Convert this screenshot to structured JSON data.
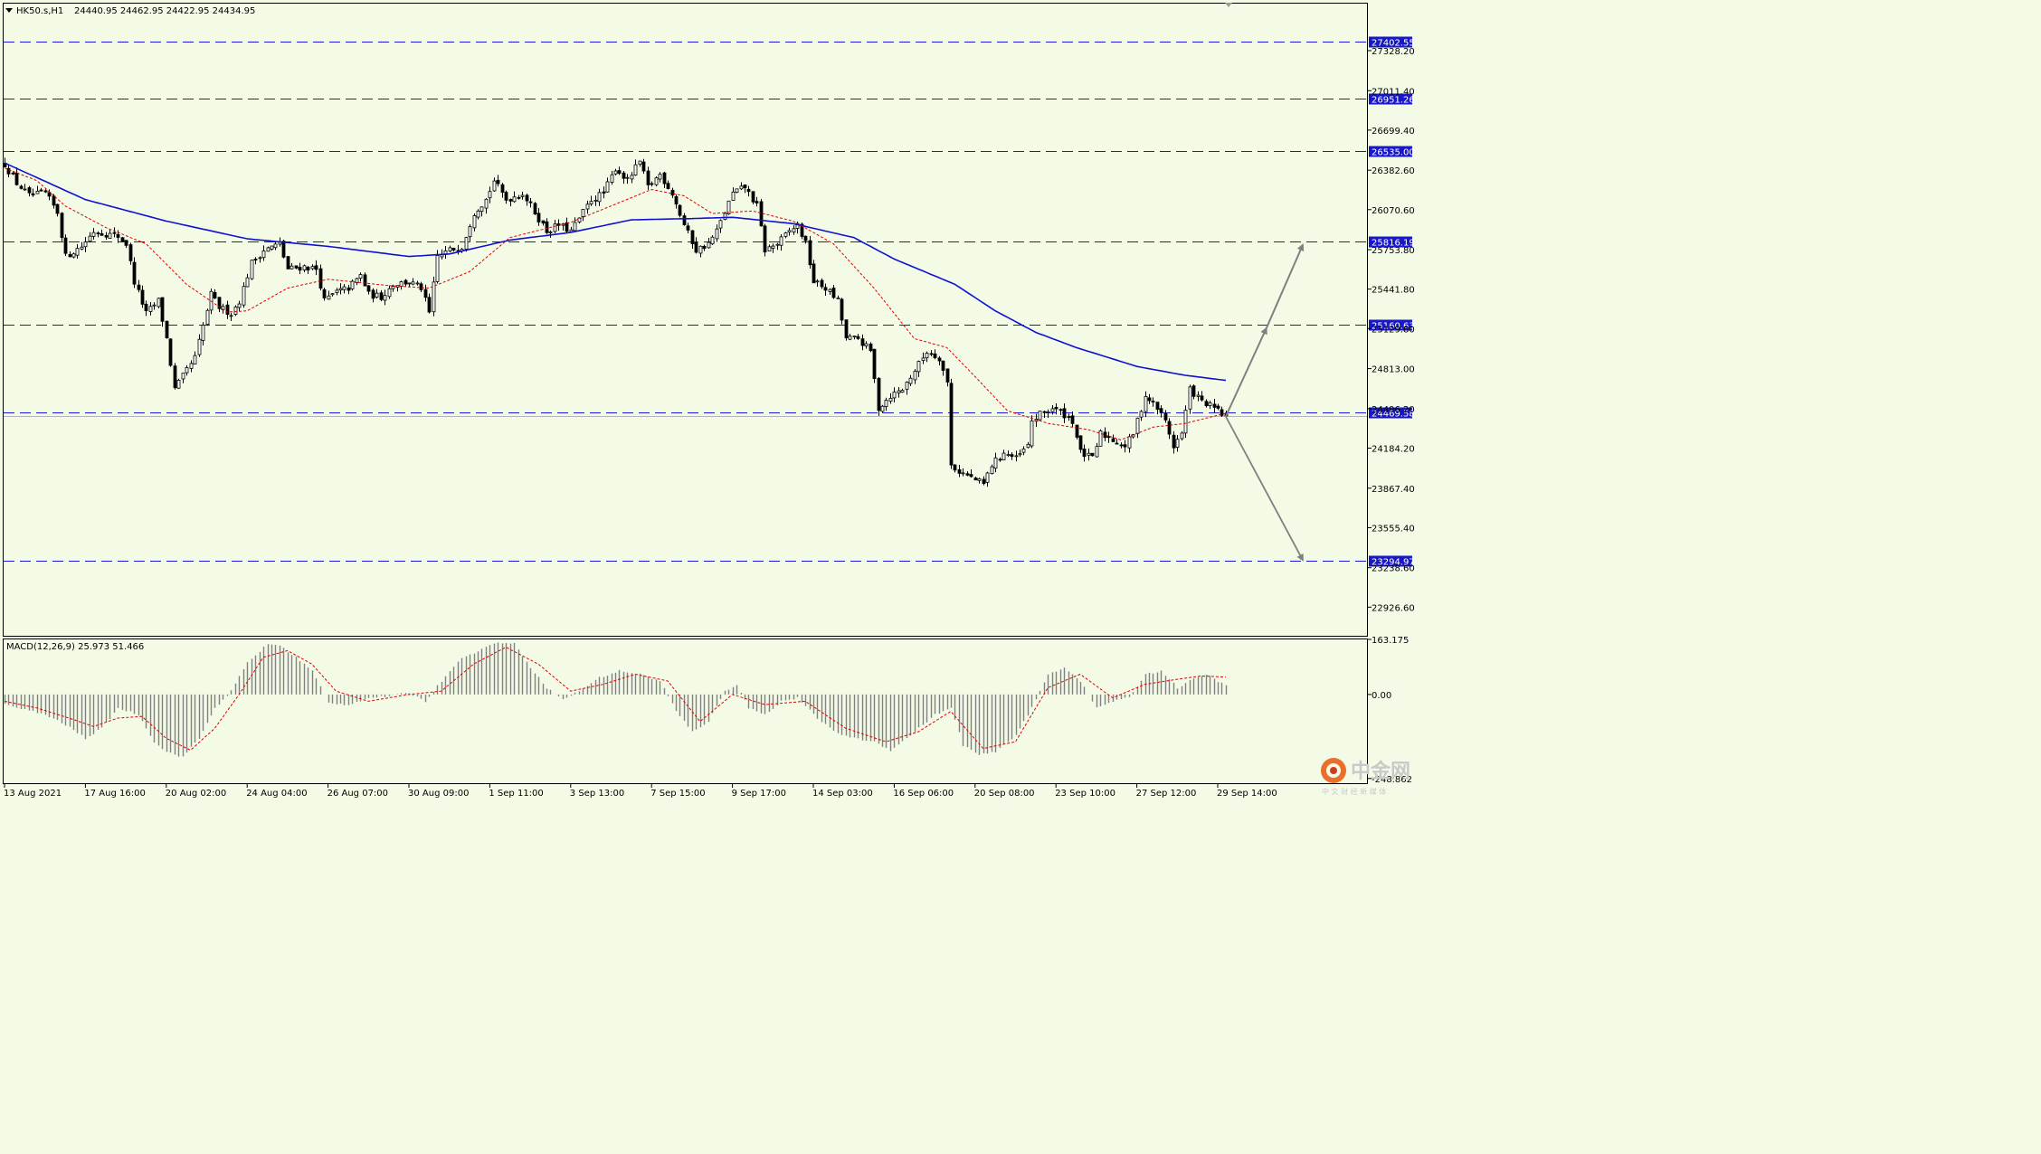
{
  "header": {
    "symbol_label": "HK50.s,H1",
    "ohlc_label": "24440.95 24462.95 24422.95 24434.95"
  },
  "colors": {
    "background": "#f3fbe6",
    "candle": "#000000",
    "sma_slow": "#1010d0",
    "sma_fast": "#e00000",
    "levels": "#1a1ad6",
    "level_tag_bg": "#1818c8",
    "macd_hist": "#808080",
    "macd_signal": "#e00000",
    "arrows": "#808080"
  },
  "chart_data": [
    {
      "type": "candlestick",
      "panel": "price",
      "symbol": "HK50.s",
      "timeframe": "H1",
      "ylim": [
        22700,
        27700
      ],
      "y_ticks": [
        27328.2,
        27011.4,
        26699.4,
        26382.6,
        26070.6,
        25753.8,
        25441.8,
        25129.8,
        24813.0,
        24496.2,
        24184.2,
        23867.4,
        23555.4,
        23238.6,
        22926.6
      ],
      "x_tick_labels": [
        "13 Aug 2021",
        "17 Aug 16:00",
        "20 Aug 02:00",
        "24 Aug 04:00",
        "26 Aug 07:00",
        "30 Aug 09:00",
        "1 Sep 11:00",
        "3 Sep 13:00",
        "7 Sep 15:00",
        "9 Sep 17:00",
        "14 Sep 03:00",
        "16 Sep 06:00",
        "20 Sep 08:00",
        "23 Sep 10:00",
        "27 Sep 12:00",
        "29 Sep 14:00"
      ],
      "x_tick_index": [
        0,
        20,
        40,
        60,
        80,
        100,
        120,
        140,
        160,
        180,
        200,
        220,
        240,
        260,
        280,
        300
      ],
      "current_price": 24434.95,
      "levels": [
        27402.55,
        26951.26,
        26535.0,
        25816.19,
        25160.63,
        24469.58,
        23294.97
      ],
      "close_path": [
        {
          "i": 0,
          "v": 26430
        },
        {
          "i": 3,
          "v": 26280
        },
        {
          "i": 6,
          "v": 26180
        },
        {
          "i": 10,
          "v": 26200
        },
        {
          "i": 13,
          "v": 26050
        },
        {
          "i": 15,
          "v": 25700
        },
        {
          "i": 19,
          "v": 25780
        },
        {
          "i": 22,
          "v": 25900
        },
        {
          "i": 25,
          "v": 25880
        },
        {
          "i": 28,
          "v": 25860
        },
        {
          "i": 30,
          "v": 25800
        },
        {
          "i": 32,
          "v": 25500
        },
        {
          "i": 35,
          "v": 25250
        },
        {
          "i": 38,
          "v": 25350
        },
        {
          "i": 40,
          "v": 25050
        },
        {
          "i": 42,
          "v": 24650
        },
        {
          "i": 44,
          "v": 24750
        },
        {
          "i": 47,
          "v": 24900
        },
        {
          "i": 49,
          "v": 25150
        },
        {
          "i": 51,
          "v": 25400
        },
        {
          "i": 53,
          "v": 25300
        },
        {
          "i": 56,
          "v": 25250
        },
        {
          "i": 58,
          "v": 25350
        },
        {
          "i": 61,
          "v": 25650
        },
        {
          "i": 64,
          "v": 25750
        },
        {
          "i": 68,
          "v": 25800
        },
        {
          "i": 70,
          "v": 25600
        },
        {
          "i": 74,
          "v": 25620
        },
        {
          "i": 77,
          "v": 25600
        },
        {
          "i": 79,
          "v": 25350
        },
        {
          "i": 82,
          "v": 25420
        },
        {
          "i": 85,
          "v": 25450
        },
        {
          "i": 88,
          "v": 25550
        },
        {
          "i": 90,
          "v": 25400
        },
        {
          "i": 93,
          "v": 25380
        },
        {
          "i": 96,
          "v": 25480
        },
        {
          "i": 100,
          "v": 25500
        },
        {
          "i": 103,
          "v": 25450
        },
        {
          "i": 105,
          "v": 25250
        },
        {
          "i": 107,
          "v": 25700
        },
        {
          "i": 110,
          "v": 25750
        },
        {
          "i": 113,
          "v": 25780
        },
        {
          "i": 116,
          "v": 26050
        },
        {
          "i": 119,
          "v": 26150
        },
        {
          "i": 121,
          "v": 26300
        },
        {
          "i": 124,
          "v": 26150
        },
        {
          "i": 128,
          "v": 26200
        },
        {
          "i": 131,
          "v": 26050
        },
        {
          "i": 134,
          "v": 25900
        },
        {
          "i": 137,
          "v": 25950
        },
        {
          "i": 140,
          "v": 25900
        },
        {
          "i": 142,
          "v": 26000
        },
        {
          "i": 145,
          "v": 26150
        },
        {
          "i": 148,
          "v": 26200
        },
        {
          "i": 151,
          "v": 26400
        },
        {
          "i": 154,
          "v": 26300
        },
        {
          "i": 157,
          "v": 26450
        },
        {
          "i": 159,
          "v": 26250
        },
        {
          "i": 162,
          "v": 26350
        },
        {
          "i": 165,
          "v": 26200
        },
        {
          "i": 168,
          "v": 25950
        },
        {
          "i": 171,
          "v": 25750
        },
        {
          "i": 174,
          "v": 25800
        },
        {
          "i": 176,
          "v": 25900
        },
        {
          "i": 178,
          "v": 26050
        },
        {
          "i": 180,
          "v": 26200
        },
        {
          "i": 183,
          "v": 26250
        },
        {
          "i": 186,
          "v": 26100
        },
        {
          "i": 188,
          "v": 25750
        },
        {
          "i": 191,
          "v": 25800
        },
        {
          "i": 194,
          "v": 25900
        },
        {
          "i": 196,
          "v": 25950
        },
        {
          "i": 198,
          "v": 25800
        },
        {
          "i": 200,
          "v": 25500
        },
        {
          "i": 203,
          "v": 25450
        },
        {
          "i": 206,
          "v": 25350
        },
        {
          "i": 208,
          "v": 25050
        },
        {
          "i": 211,
          "v": 25050
        },
        {
          "i": 214,
          "v": 24950
        },
        {
          "i": 216,
          "v": 24500
        },
        {
          "i": 219,
          "v": 24600
        },
        {
          "i": 222,
          "v": 24650
        },
        {
          "i": 225,
          "v": 24800
        },
        {
          "i": 228,
          "v": 24950
        },
        {
          "i": 231,
          "v": 24900
        },
        {
          "i": 233,
          "v": 24700
        },
        {
          "i": 234,
          "v": 24050
        },
        {
          "i": 236,
          "v": 24000
        },
        {
          "i": 239,
          "v": 23950
        },
        {
          "i": 242,
          "v": 23900
        },
        {
          "i": 244,
          "v": 24050
        },
        {
          "i": 247,
          "v": 24150
        },
        {
          "i": 250,
          "v": 24100
        },
        {
          "i": 253,
          "v": 24200
        },
        {
          "i": 254,
          "v": 24400
        },
        {
          "i": 256,
          "v": 24450
        },
        {
          "i": 259,
          "v": 24500
        },
        {
          "i": 262,
          "v": 24450
        },
        {
          "i": 264,
          "v": 24400
        },
        {
          "i": 266,
          "v": 24150
        },
        {
          "i": 269,
          "v": 24100
        },
        {
          "i": 271,
          "v": 24300
        },
        {
          "i": 274,
          "v": 24250
        },
        {
          "i": 277,
          "v": 24200
        },
        {
          "i": 279,
          "v": 24300
        },
        {
          "i": 282,
          "v": 24600
        },
        {
          "i": 285,
          "v": 24500
        },
        {
          "i": 287,
          "v": 24400
        },
        {
          "i": 289,
          "v": 24200
        },
        {
          "i": 291,
          "v": 24300
        },
        {
          "i": 293,
          "v": 24650
        },
        {
          "i": 296,
          "v": 24550
        },
        {
          "i": 299,
          "v": 24500
        },
        {
          "i": 302,
          "v": 24430
        }
      ],
      "sma_slow_path": [
        {
          "i": 0,
          "v": 26440
        },
        {
          "i": 20,
          "v": 26150
        },
        {
          "i": 40,
          "v": 25980
        },
        {
          "i": 60,
          "v": 25840
        },
        {
          "i": 80,
          "v": 25780
        },
        {
          "i": 100,
          "v": 25700
        },
        {
          "i": 110,
          "v": 25720
        },
        {
          "i": 125,
          "v": 25830
        },
        {
          "i": 140,
          "v": 25890
        },
        {
          "i": 155,
          "v": 25990
        },
        {
          "i": 170,
          "v": 26000
        },
        {
          "i": 180,
          "v": 26010
        },
        {
          "i": 195,
          "v": 25960
        },
        {
          "i": 210,
          "v": 25850
        },
        {
          "i": 220,
          "v": 25680
        },
        {
          "i": 235,
          "v": 25480
        },
        {
          "i": 245,
          "v": 25270
        },
        {
          "i": 255,
          "v": 25100
        },
        {
          "i": 265,
          "v": 24980
        },
        {
          "i": 280,
          "v": 24830
        },
        {
          "i": 292,
          "v": 24760
        },
        {
          "i": 302,
          "v": 24720
        }
      ],
      "sma_fast_path": [
        {
          "i": 0,
          "v": 26400
        },
        {
          "i": 8,
          "v": 26300
        },
        {
          "i": 15,
          "v": 26100
        },
        {
          "i": 25,
          "v": 25930
        },
        {
          "i": 35,
          "v": 25800
        },
        {
          "i": 45,
          "v": 25480
        },
        {
          "i": 55,
          "v": 25260
        },
        {
          "i": 60,
          "v": 25270
        },
        {
          "i": 70,
          "v": 25450
        },
        {
          "i": 80,
          "v": 25520
        },
        {
          "i": 95,
          "v": 25470
        },
        {
          "i": 105,
          "v": 25450
        },
        {
          "i": 115,
          "v": 25580
        },
        {
          "i": 125,
          "v": 25850
        },
        {
          "i": 140,
          "v": 25970
        },
        {
          "i": 150,
          "v": 26100
        },
        {
          "i": 160,
          "v": 26230
        },
        {
          "i": 168,
          "v": 26180
        },
        {
          "i": 175,
          "v": 26040
        },
        {
          "i": 185,
          "v": 26060
        },
        {
          "i": 195,
          "v": 25980
        },
        {
          "i": 205,
          "v": 25800
        },
        {
          "i": 215,
          "v": 25450
        },
        {
          "i": 225,
          "v": 25050
        },
        {
          "i": 233,
          "v": 24980
        },
        {
          "i": 240,
          "v": 24750
        },
        {
          "i": 248,
          "v": 24480
        },
        {
          "i": 258,
          "v": 24380
        },
        {
          "i": 268,
          "v": 24330
        },
        {
          "i": 276,
          "v": 24250
        },
        {
          "i": 284,
          "v": 24350
        },
        {
          "i": 292,
          "v": 24380
        },
        {
          "i": 302,
          "v": 24460
        }
      ],
      "scenario_up": [
        {
          "i": 302,
          "v": 24434.95
        },
        {
          "i": 312,
          "v": 25130
        },
        {
          "i": 321,
          "v": 25790
        }
      ],
      "scenario_down": [
        {
          "i": 302,
          "v": 24434.95
        },
        {
          "i": 321,
          "v": 23300
        }
      ]
    },
    {
      "type": "bar",
      "panel": "macd",
      "title": "MACD(12,26,9) 25.973 51.466",
      "name": "MACD",
      "params": [
        12,
        26,
        9
      ],
      "macd_value": 25.973,
      "signal_value": 51.466,
      "ylim": [
        -262.862,
        163.175
      ],
      "y_ticks": [
        163.175,
        0.0,
        -248.862
      ],
      "hist_path": [
        {
          "i": 0,
          "v": -30
        },
        {
          "i": 5,
          "v": -45
        },
        {
          "i": 10,
          "v": -60
        },
        {
          "i": 15,
          "v": -90
        },
        {
          "i": 20,
          "v": -130
        },
        {
          "i": 24,
          "v": -100
        },
        {
          "i": 28,
          "v": -40
        },
        {
          "i": 33,
          "v": -60
        },
        {
          "i": 37,
          "v": -140
        },
        {
          "i": 40,
          "v": -170
        },
        {
          "i": 44,
          "v": -185
        },
        {
          "i": 48,
          "v": -130
        },
        {
          "i": 52,
          "v": -40
        },
        {
          "i": 56,
          "v": 10
        },
        {
          "i": 60,
          "v": 95
        },
        {
          "i": 65,
          "v": 150
        },
        {
          "i": 68,
          "v": 145
        },
        {
          "i": 72,
          "v": 110
        },
        {
          "i": 76,
          "v": 70
        },
        {
          "i": 80,
          "v": -25
        },
        {
          "i": 85,
          "v": -30
        },
        {
          "i": 90,
          "v": -10
        },
        {
          "i": 95,
          "v": -5
        },
        {
          "i": 100,
          "v": 5
        },
        {
          "i": 104,
          "v": -20
        },
        {
          "i": 108,
          "v": 40
        },
        {
          "i": 112,
          "v": 100
        },
        {
          "i": 117,
          "v": 130
        },
        {
          "i": 122,
          "v": 155
        },
        {
          "i": 126,
          "v": 150
        },
        {
          "i": 130,
          "v": 80
        },
        {
          "i": 134,
          "v": 20
        },
        {
          "i": 138,
          "v": -15
        },
        {
          "i": 142,
          "v": 10
        },
        {
          "i": 147,
          "v": 50
        },
        {
          "i": 152,
          "v": 70
        },
        {
          "i": 157,
          "v": 60
        },
        {
          "i": 162,
          "v": 40
        },
        {
          "i": 166,
          "v": -50
        },
        {
          "i": 170,
          "v": -110
        },
        {
          "i": 174,
          "v": -80
        },
        {
          "i": 178,
          "v": 10
        },
        {
          "i": 181,
          "v": 30
        },
        {
          "i": 184,
          "v": -40
        },
        {
          "i": 188,
          "v": -60
        },
        {
          "i": 192,
          "v": -20
        },
        {
          "i": 196,
          "v": -10
        },
        {
          "i": 200,
          "v": -60
        },
        {
          "i": 205,
          "v": -110
        },
        {
          "i": 210,
          "v": -130
        },
        {
          "i": 215,
          "v": -140
        },
        {
          "i": 219,
          "v": -165
        },
        {
          "i": 222,
          "v": -140
        },
        {
          "i": 226,
          "v": -100
        },
        {
          "i": 230,
          "v": -60
        },
        {
          "i": 234,
          "v": -40
        },
        {
          "i": 237,
          "v": -150
        },
        {
          "i": 241,
          "v": -180
        },
        {
          "i": 245,
          "v": -170
        },
        {
          "i": 250,
          "v": -120
        },
        {
          "i": 254,
          "v": -40
        },
        {
          "i": 258,
          "v": 60
        },
        {
          "i": 262,
          "v": 80
        },
        {
          "i": 266,
          "v": 40
        },
        {
          "i": 270,
          "v": -40
        },
        {
          "i": 274,
          "v": -20
        },
        {
          "i": 278,
          "v": -10
        },
        {
          "i": 282,
          "v": 60
        },
        {
          "i": 286,
          "v": 70
        },
        {
          "i": 290,
          "v": 20
        },
        {
          "i": 293,
          "v": 40
        },
        {
          "i": 297,
          "v": 60
        },
        {
          "i": 302,
          "v": 26
        }
      ],
      "signal_path": [
        {
          "i": 0,
          "v": -20
        },
        {
          "i": 8,
          "v": -40
        },
        {
          "i": 16,
          "v": -70
        },
        {
          "i": 22,
          "v": -95
        },
        {
          "i": 28,
          "v": -70
        },
        {
          "i": 34,
          "v": -65
        },
        {
          "i": 40,
          "v": -130
        },
        {
          "i": 46,
          "v": -165
        },
        {
          "i": 52,
          "v": -100
        },
        {
          "i": 58,
          "v": 0
        },
        {
          "i": 64,
          "v": 110
        },
        {
          "i": 70,
          "v": 130
        },
        {
          "i": 76,
          "v": 90
        },
        {
          "i": 82,
          "v": 10
        },
        {
          "i": 90,
          "v": -20
        },
        {
          "i": 100,
          "v": 0
        },
        {
          "i": 108,
          "v": 10
        },
        {
          "i": 116,
          "v": 90
        },
        {
          "i": 124,
          "v": 140
        },
        {
          "i": 132,
          "v": 90
        },
        {
          "i": 140,
          "v": 10
        },
        {
          "i": 148,
          "v": 30
        },
        {
          "i": 156,
          "v": 60
        },
        {
          "i": 164,
          "v": 40
        },
        {
          "i": 172,
          "v": -80
        },
        {
          "i": 180,
          "v": 0
        },
        {
          "i": 188,
          "v": -30
        },
        {
          "i": 198,
          "v": -20
        },
        {
          "i": 208,
          "v": -100
        },
        {
          "i": 218,
          "v": -140
        },
        {
          "i": 226,
          "v": -110
        },
        {
          "i": 234,
          "v": -50
        },
        {
          "i": 242,
          "v": -160
        },
        {
          "i": 250,
          "v": -140
        },
        {
          "i": 258,
          "v": 20
        },
        {
          "i": 266,
          "v": 60
        },
        {
          "i": 274,
          "v": -10
        },
        {
          "i": 282,
          "v": 30
        },
        {
          "i": 290,
          "v": 45
        },
        {
          "i": 296,
          "v": 55
        },
        {
          "i": 302,
          "v": 51.5
        }
      ]
    }
  ],
  "watermark": {
    "brand": "中金网",
    "subtitle": "中 文 财 经 新 媒 体"
  }
}
